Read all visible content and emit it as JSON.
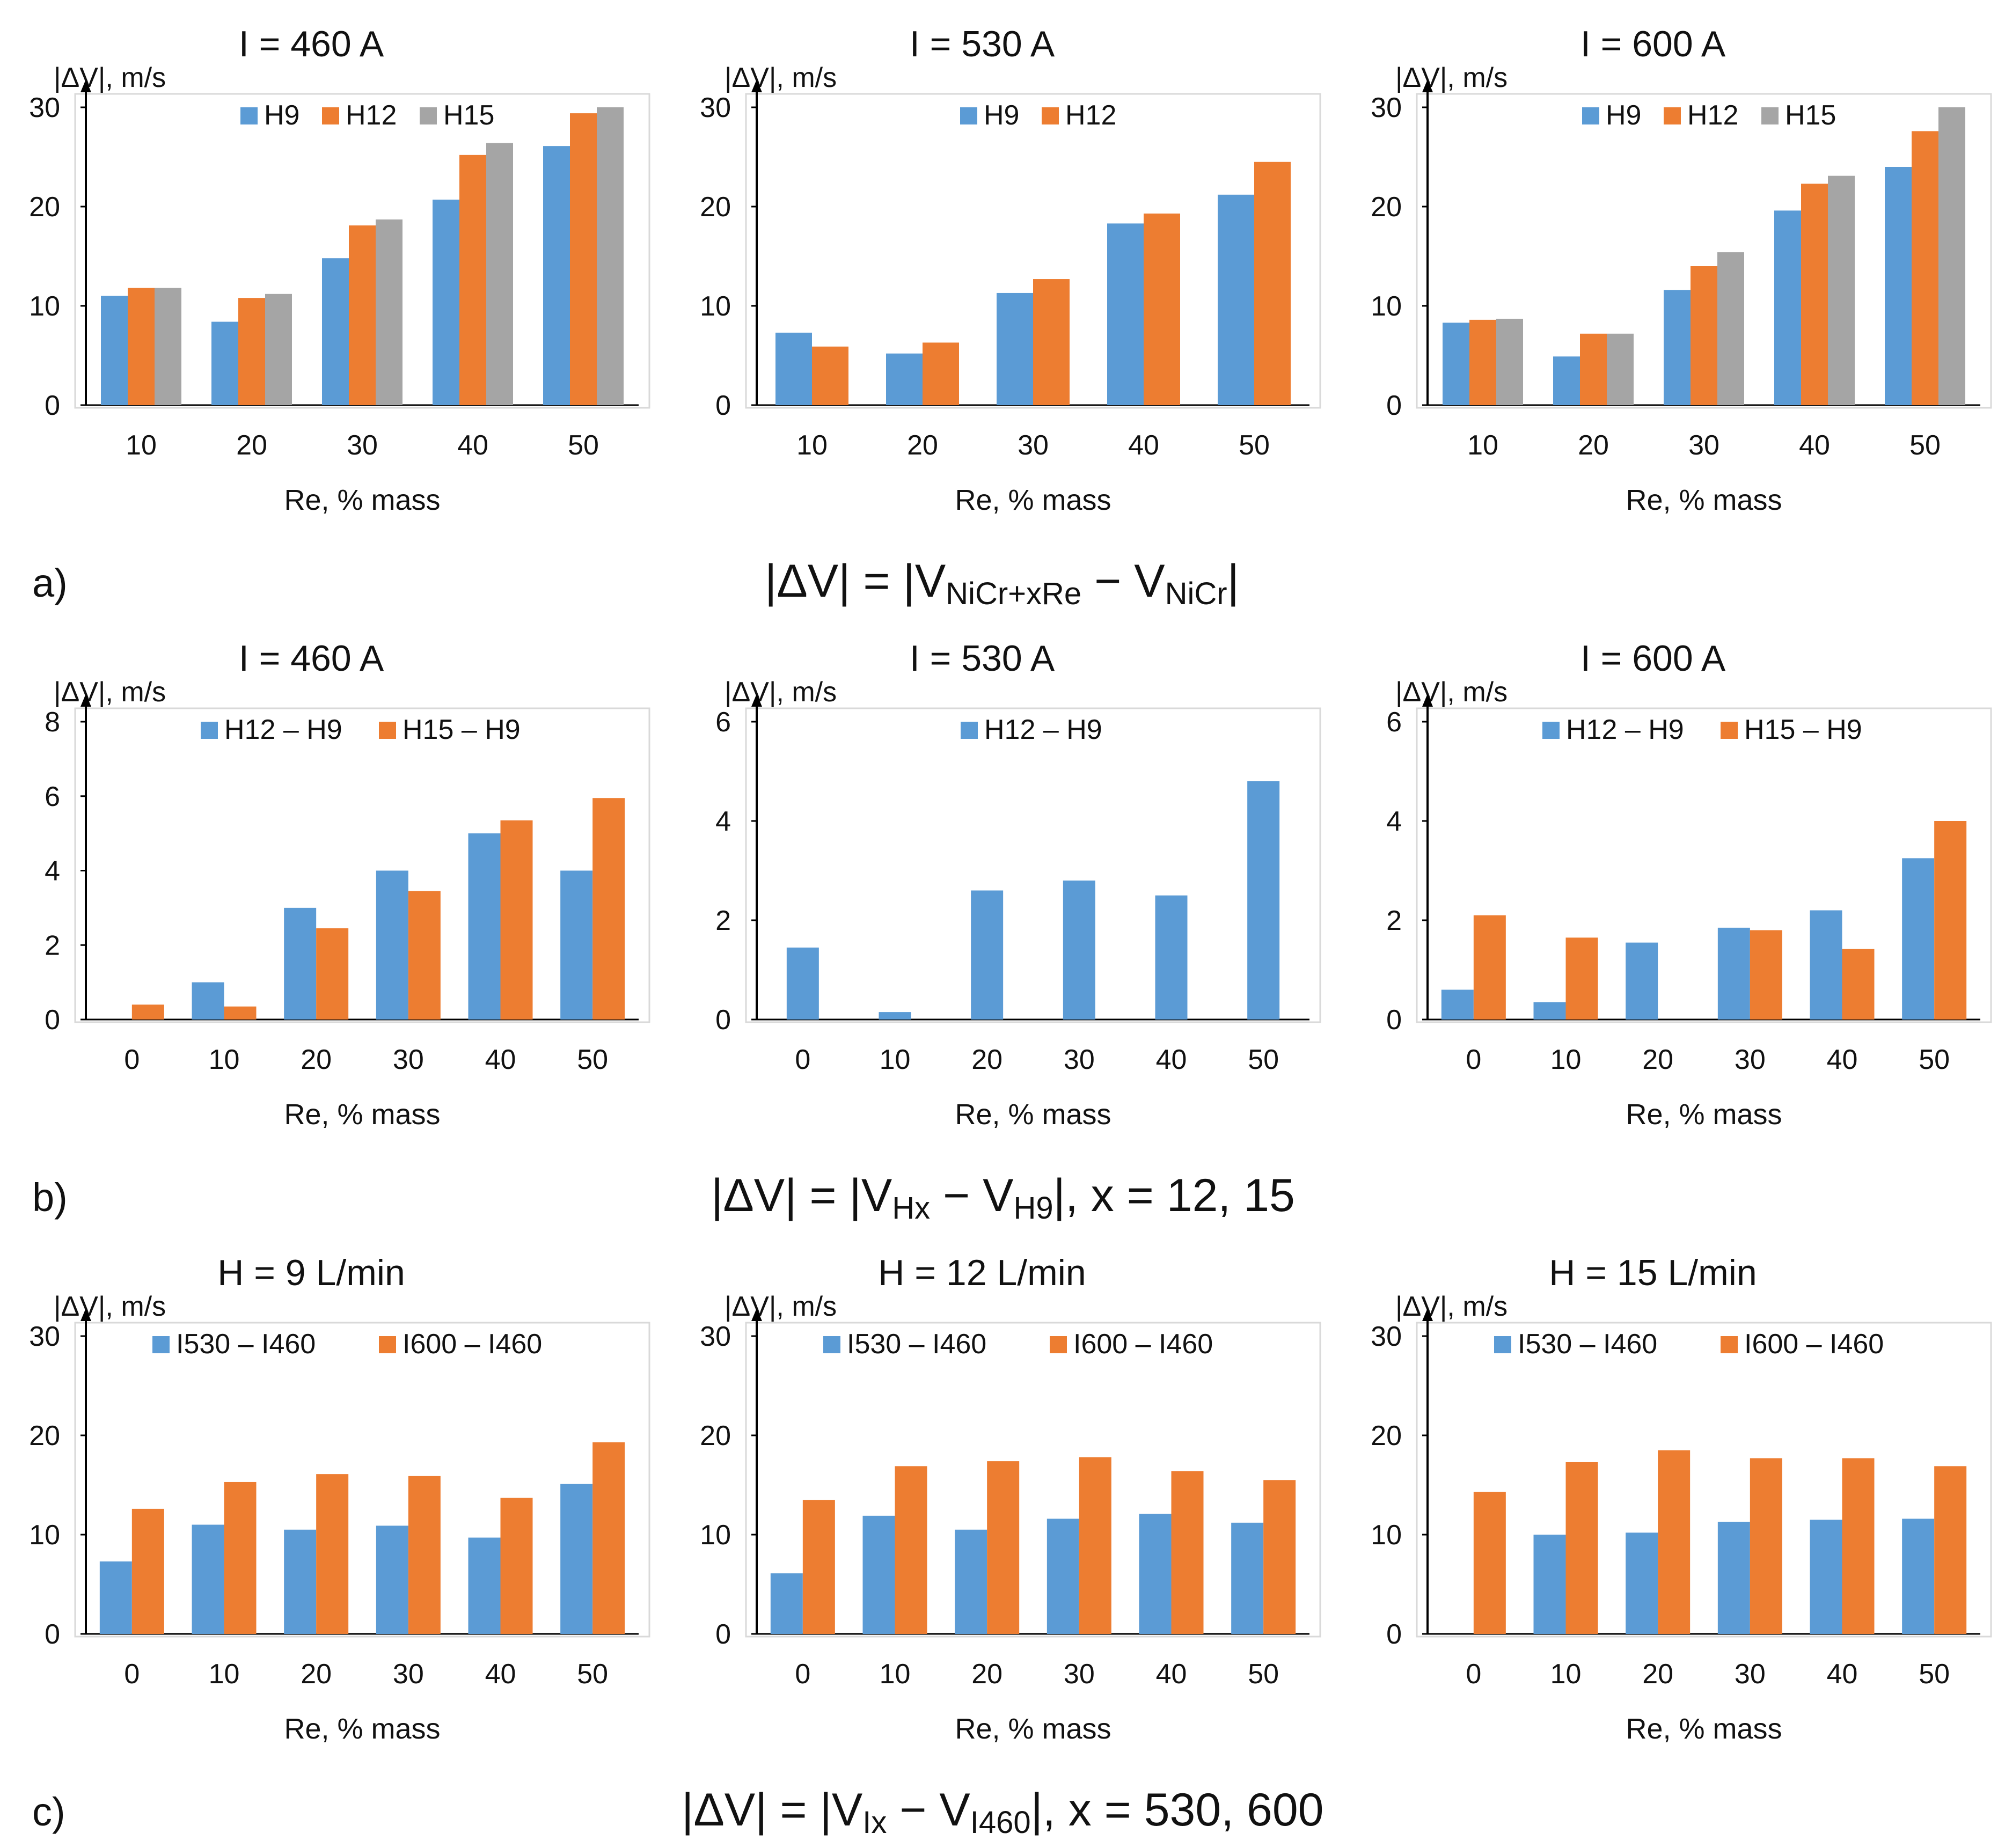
{
  "colors": {
    "blue": "#5b9bd5",
    "orange": "#ed7d31",
    "gray": "#a5a5a5",
    "axis": "#000000",
    "frame": "#d9d9d9"
  },
  "rows": [
    {
      "label": "a)",
      "formula": {
        "lhs": "|ΔV| = |V",
        "sub1": "NiCr+xRe",
        "mid": " − V",
        "sub2": "NiCr",
        "rhs": "|"
      }
    },
    {
      "label": "b)",
      "formula": {
        "lhs": "|ΔV| = |V",
        "sub1": "Hx",
        "mid": " − V",
        "sub2": "H9",
        "rhs": "|, x = 12, 15"
      }
    },
    {
      "label": "c)",
      "formula": {
        "lhs": "|ΔV| = |V",
        "sub1": "Ix",
        "mid": " − V",
        "sub2": "I460",
        "rhs": "|, x = 530, 600"
      }
    }
  ],
  "chart_data": [
    {
      "type": "bar",
      "title": "I = 460 A",
      "ylabel": "|ΔV|, m/s",
      "xlabel": "Re, % mass",
      "ylim": [
        0,
        30
      ],
      "yticks": [
        0,
        10,
        20,
        30
      ],
      "categories": [
        "10",
        "20",
        "30",
        "40",
        "50"
      ],
      "series": [
        {
          "name": "H9",
          "color": "#5b9bd5",
          "values": [
            11,
            8.4,
            14.8,
            20.7,
            26.1
          ]
        },
        {
          "name": "H12",
          "color": "#ed7d31",
          "values": [
            11.8,
            10.8,
            18.1,
            25.2,
            29.4
          ]
        },
        {
          "name": "H15",
          "color": "#a5a5a5",
          "values": [
            11.8,
            11.2,
            18.7,
            26.4,
            30
          ]
        }
      ]
    },
    {
      "type": "bar",
      "title": "I = 530 A",
      "ylabel": "|ΔV|, m/s",
      "xlabel": "Re, % mass",
      "ylim": [
        0,
        30
      ],
      "yticks": [
        0,
        10,
        20,
        30
      ],
      "categories": [
        "10",
        "20",
        "30",
        "40",
        "50"
      ],
      "series": [
        {
          "name": "H9",
          "color": "#5b9bd5",
          "values": [
            7.3,
            5.2,
            11.3,
            18.3,
            21.2
          ]
        },
        {
          "name": "H12",
          "color": "#ed7d31",
          "values": [
            5.9,
            6.3,
            12.7,
            19.3,
            24.5
          ]
        }
      ]
    },
    {
      "type": "bar",
      "title": "I = 600 A",
      "ylabel": "|ΔV|, m/s",
      "xlabel": "Re, % mass",
      "ylim": [
        0,
        30
      ],
      "yticks": [
        0,
        10,
        20,
        30
      ],
      "categories": [
        "10",
        "20",
        "30",
        "40",
        "50"
      ],
      "series": [
        {
          "name": "H9",
          "color": "#5b9bd5",
          "values": [
            8.3,
            4.9,
            11.6,
            19.6,
            24
          ]
        },
        {
          "name": "H12",
          "color": "#ed7d31",
          "values": [
            8.6,
            7.2,
            14,
            22.3,
            27.6
          ]
        },
        {
          "name": "H15",
          "color": "#a5a5a5",
          "values": [
            8.7,
            7.2,
            15.4,
            23.1,
            30
          ]
        }
      ]
    },
    {
      "type": "bar",
      "title": "I = 460 A",
      "ylabel": "|ΔV|, m/s",
      "xlabel": "Re, % mass",
      "ylim": [
        0,
        8
      ],
      "yticks": [
        0,
        2,
        4,
        6,
        8
      ],
      "categories": [
        "0",
        "10",
        "20",
        "30",
        "40",
        "50"
      ],
      "series": [
        {
          "name": "H12 – H9",
          "color": "#5b9bd5",
          "values": [
            0,
            1.0,
            3.0,
            4.0,
            5.0,
            4.0
          ]
        },
        {
          "name": "H15 – H9",
          "color": "#ed7d31",
          "values": [
            0.4,
            0.35,
            2.45,
            3.45,
            5.35,
            5.95
          ]
        }
      ]
    },
    {
      "type": "bar",
      "title": "I = 530 A",
      "ylabel": "|ΔV|, m/s",
      "xlabel": "Re, % mass",
      "ylim": [
        0,
        6
      ],
      "yticks": [
        0,
        2,
        4,
        6
      ],
      "categories": [
        "0",
        "10",
        "20",
        "30",
        "40",
        "50"
      ],
      "series": [
        {
          "name": "H12 – H9",
          "color": "#5b9bd5",
          "values": [
            1.45,
            0.15,
            2.6,
            2.8,
            2.5,
            4.8
          ]
        }
      ]
    },
    {
      "type": "bar",
      "title": "I = 600 A",
      "ylabel": "|ΔV|, m/s",
      "xlabel": "Re, % mass",
      "ylim": [
        0,
        6
      ],
      "yticks": [
        0,
        2,
        4,
        6
      ],
      "categories": [
        "0",
        "10",
        "20",
        "30",
        "40",
        "50"
      ],
      "series": [
        {
          "name": "H12 – H9",
          "color": "#5b9bd5",
          "values": [
            0.6,
            0.35,
            1.55,
            1.85,
            2.2,
            3.25
          ]
        },
        {
          "name": "H15 – H9",
          "color": "#ed7d31",
          "values": [
            2.1,
            1.65,
            0,
            1.8,
            1.42,
            4.0
          ]
        }
      ]
    },
    {
      "type": "bar",
      "title": "H = 9 L/min",
      "ylabel": "|ΔV|, m/s",
      "xlabel": "Re, % mass",
      "ylim": [
        0,
        30
      ],
      "yticks": [
        0,
        10,
        20,
        30
      ],
      "categories": [
        "0",
        "10",
        "20",
        "30",
        "40",
        "50"
      ],
      "series": [
        {
          "name": "I530 – I460",
          "color": "#5b9bd5",
          "values": [
            7.3,
            11,
            10.5,
            10.9,
            9.7,
            15.1
          ]
        },
        {
          "name": "I600 – I460",
          "color": "#ed7d31",
          "values": [
            12.6,
            15.3,
            16.1,
            15.9,
            13.7,
            19.3
          ]
        }
      ]
    },
    {
      "type": "bar",
      "title": "H = 12 L/min",
      "ylabel": "|ΔV|, m/s",
      "xlabel": "Re, % mass",
      "ylim": [
        0,
        30
      ],
      "yticks": [
        0,
        10,
        20,
        30
      ],
      "categories": [
        "0",
        "10",
        "20",
        "30",
        "40",
        "50"
      ],
      "series": [
        {
          "name": "I530 – I460",
          "color": "#5b9bd5",
          "values": [
            6.1,
            11.9,
            10.5,
            11.6,
            12.1,
            11.2
          ]
        },
        {
          "name": "I600 – I460",
          "color": "#ed7d31",
          "values": [
            13.5,
            16.9,
            17.4,
            17.8,
            16.4,
            15.5
          ]
        }
      ]
    },
    {
      "type": "bar",
      "title": "H = 15 L/min",
      "ylabel": "|ΔV|, m/s",
      "xlabel": "Re, % mass",
      "ylim": [
        0,
        30
      ],
      "yticks": [
        0,
        10,
        20,
        30
      ],
      "categories": [
        "0",
        "10",
        "20",
        "30",
        "40",
        "50"
      ],
      "series": [
        {
          "name": "I530 – I460",
          "color": "#5b9bd5",
          "values": [
            0,
            10,
            10.2,
            11.3,
            11.5,
            11.6
          ]
        },
        {
          "name": "I600 – I460",
          "color": "#ed7d31",
          "values": [
            14.3,
            17.3,
            18.5,
            17.7,
            17.7,
            16.9
          ]
        }
      ]
    }
  ]
}
